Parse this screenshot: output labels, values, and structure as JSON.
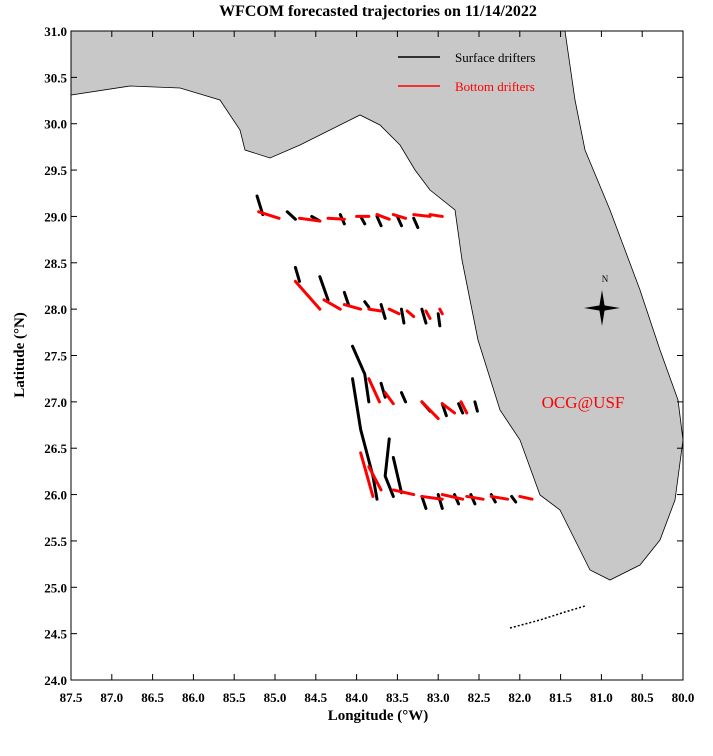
{
  "chart_data": {
    "type": "trajectory-map",
    "title": "WFCOM forecasted trajectories on 11/14/2022",
    "x_label": "Longitude (°W)",
    "y_label": "Latitude (°N)",
    "annotation": "OCG@USF",
    "compass_label": "N",
    "xlim": [
      87.5,
      80.0
    ],
    "ylim": [
      24.0,
      31.0
    ],
    "xticks": [
      87.5,
      {
        "value": 87,
        "label": "87.0"
      },
      86.5,
      {
        "value": 86,
        "label": "86.0"
      },
      85.5,
      {
        "value": 85,
        "label": "85.0"
      },
      84.5,
      {
        "value": 84,
        "label": "84.0"
      },
      83.5,
      {
        "value": 83,
        "label": "83.0"
      },
      82.5,
      {
        "value": 82,
        "label": "82.0"
      },
      81.5,
      {
        "value": 81,
        "label": "81.0"
      },
      80.5,
      {
        "value": 80,
        "label": "80.0"
      }
    ],
    "yticks": [
      {
        "value": 24,
        "label": "24.0"
      },
      24.5,
      {
        "value": 25,
        "label": "25.0"
      },
      25.5,
      {
        "value": 26,
        "label": "26.0"
      },
      26.5,
      {
        "value": 27,
        "label": "27.0"
      },
      27.5,
      {
        "value": 28,
        "label": "28.0"
      },
      28.5,
      {
        "value": 29,
        "label": "29.0"
      },
      29.5,
      {
        "value": 30,
        "label": "30.0"
      },
      30.5,
      {
        "value": 31,
        "label": "31.0"
      }
    ],
    "series": [
      {
        "name": "Surface drifters",
        "color": "#000000",
        "tracks": [
          {
            "x": [
              85.22,
              85.15
            ],
            "y": [
              29.22,
              29.02
            ]
          },
          {
            "x": [
              84.85,
              84.75
            ],
            "y": [
              29.05,
              28.97
            ]
          },
          {
            "x": [
              84.55,
              84.45
            ],
            "y": [
              29.0,
              28.95
            ]
          },
          {
            "x": [
              84.2,
              84.15
            ],
            "y": [
              29.02,
              28.92
            ]
          },
          {
            "x": [
              83.95,
              83.9
            ],
            "y": [
              29.0,
              28.92
            ]
          },
          {
            "x": [
              83.75,
              83.7
            ],
            "y": [
              29.0,
              28.9
            ]
          },
          {
            "x": [
              83.5,
              83.45
            ],
            "y": [
              29.0,
              28.9
            ]
          },
          {
            "x": [
              83.3,
              83.25
            ],
            "y": [
              28.98,
              28.88
            ]
          },
          {
            "x": [
              84.75,
              84.7
            ],
            "y": [
              28.45,
              28.3
            ]
          },
          {
            "x": [
              84.45,
              84.35
            ],
            "y": [
              28.35,
              28.1
            ]
          },
          {
            "x": [
              84.15,
              84.1
            ],
            "y": [
              28.18,
              28.05
            ]
          },
          {
            "x": [
              83.9,
              83.85
            ],
            "y": [
              28.08,
              28.02
            ]
          },
          {
            "x": [
              83.7,
              83.65
            ],
            "y": [
              28.05,
              27.9
            ]
          },
          {
            "x": [
              83.45,
              83.42
            ],
            "y": [
              28.0,
              27.85
            ]
          },
          {
            "x": [
              83.2,
              83.15
            ],
            "y": [
              28.0,
              27.85
            ]
          },
          {
            "x": [
              83.0,
              82.98
            ],
            "y": [
              27.95,
              27.82
            ]
          },
          {
            "x": [
              84.05,
              83.9,
              83.85
            ],
            "y": [
              27.6,
              27.3,
              27.0
            ]
          },
          {
            "x": [
              84.05,
              83.95,
              83.8,
              83.75
            ],
            "y": [
              27.25,
              26.7,
              26.2,
              25.95
            ]
          },
          {
            "x": [
              83.7,
              83.65
            ],
            "y": [
              27.2,
              27.05
            ]
          },
          {
            "x": [
              83.45,
              83.4
            ],
            "y": [
              27.1,
              27.0
            ]
          },
          {
            "x": [
              83.2,
              83.1
            ],
            "y": [
              27.0,
              26.9
            ]
          },
          {
            "x": [
              82.95,
              82.9
            ],
            "y": [
              26.98,
              26.85
            ]
          },
          {
            "x": [
              82.75,
              82.7
            ],
            "y": [
              26.98,
              26.88
            ]
          },
          {
            "x": [
              82.55,
              82.52
            ],
            "y": [
              27.0,
              26.9
            ]
          },
          {
            "x": [
              83.6,
              83.65,
              83.55
            ],
            "y": [
              26.6,
              26.2,
              25.98
            ]
          },
          {
            "x": [
              83.55,
              83.45
            ],
            "y": [
              26.4,
              26.02
            ]
          },
          {
            "x": [
              83.2,
              83.15
            ],
            "y": [
              25.98,
              25.85
            ]
          },
          {
            "x": [
              83.0,
              82.95
            ],
            "y": [
              26.0,
              25.85
            ]
          },
          {
            "x": [
              82.8,
              82.75
            ],
            "y": [
              26.0,
              25.9
            ]
          },
          {
            "x": [
              82.6,
              82.55
            ],
            "y": [
              26.0,
              25.9
            ]
          },
          {
            "x": [
              82.35,
              82.3
            ],
            "y": [
              26.0,
              25.92
            ]
          },
          {
            "x": [
              82.1,
              82.05
            ],
            "y": [
              25.98,
              25.92
            ]
          }
        ]
      },
      {
        "name": "Bottom drifters",
        "color": "#ff0000",
        "tracks": [
          {
            "x": [
              85.2,
              84.95
            ],
            "y": [
              29.05,
              28.98
            ]
          },
          {
            "x": [
              84.7,
              84.45
            ],
            "y": [
              28.98,
              28.95
            ]
          },
          {
            "x": [
              84.35,
              84.15
            ],
            "y": [
              28.98,
              28.97
            ]
          },
          {
            "x": [
              84.0,
              83.85
            ],
            "y": [
              29.0,
              29.0
            ]
          },
          {
            "x": [
              83.75,
              83.6
            ],
            "y": [
              29.02,
              28.97
            ]
          },
          {
            "x": [
              83.55,
              83.4
            ],
            "y": [
              29.02,
              28.98
            ]
          },
          {
            "x": [
              83.3,
              83.1
            ],
            "y": [
              29.02,
              29.0
            ]
          },
          {
            "x": [
              83.1,
              82.95
            ],
            "y": [
              29.02,
              29.0
            ]
          },
          {
            "x": [
              84.75,
              84.45
            ],
            "y": [
              28.3,
              28.0
            ]
          },
          {
            "x": [
              84.4,
              84.2
            ],
            "y": [
              28.1,
              28.0
            ]
          },
          {
            "x": [
              84.15,
              83.95
            ],
            "y": [
              28.05,
              28.0
            ]
          },
          {
            "x": [
              83.85,
              83.7
            ],
            "y": [
              28.0,
              27.98
            ]
          },
          {
            "x": [
              83.6,
              83.48
            ],
            "y": [
              28.0,
              27.95
            ]
          },
          {
            "x": [
              83.38,
              83.3
            ],
            "y": [
              27.98,
              27.92
            ]
          },
          {
            "x": [
              83.15,
              83.1
            ],
            "y": [
              27.98,
              27.9
            ]
          },
          {
            "x": [
              82.98,
              82.95
            ],
            "y": [
              28.0,
              27.95
            ]
          },
          {
            "x": [
              83.85,
              83.72
            ],
            "y": [
              27.25,
              27.0
            ]
          },
          {
            "x": [
              83.65,
              83.55
            ],
            "y": [
              27.1,
              26.98
            ]
          },
          {
            "x": [
              83.2,
              83.0
            ],
            "y": [
              27.0,
              26.82
            ]
          },
          {
            "x": [
              82.95,
              82.8
            ],
            "y": [
              26.98,
              26.88
            ]
          },
          {
            "x": [
              82.72,
              82.65
            ],
            "y": [
              27.0,
              26.88
            ]
          },
          {
            "x": [
              83.95,
              83.8
            ],
            "y": [
              26.45,
              25.98
            ]
          },
          {
            "x": [
              83.85,
              83.7
            ],
            "y": [
              26.3,
              26.05
            ]
          },
          {
            "x": [
              83.55,
              83.3
            ],
            "y": [
              26.05,
              26.0
            ]
          },
          {
            "x": [
              83.2,
              82.95
            ],
            "y": [
              25.98,
              25.95
            ]
          },
          {
            "x": [
              82.95,
              82.7
            ],
            "y": [
              26.0,
              25.95
            ]
          },
          {
            "x": [
              82.65,
              82.45
            ],
            "y": [
              25.98,
              25.95
            ]
          },
          {
            "x": [
              82.35,
              82.15
            ],
            "y": [
              25.98,
              25.95
            ]
          },
          {
            "x": [
              82.0,
              81.85
            ],
            "y": [
              25.98,
              25.95
            ]
          }
        ]
      }
    ]
  }
}
